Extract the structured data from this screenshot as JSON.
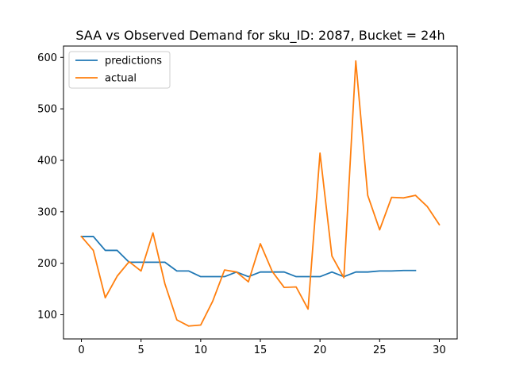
{
  "chart_data": {
    "type": "line",
    "title": "SAA vs Observed Demand for sku_ID: 2087, Bucket = 24h",
    "xlabel": "",
    "ylabel": "",
    "xlim": [
      -1.5,
      31.5
    ],
    "ylim": [
      53,
      622
    ],
    "xticks": [
      0,
      5,
      10,
      15,
      20,
      25,
      30
    ],
    "yticks": [
      100,
      200,
      300,
      400,
      500,
      600
    ],
    "grid": false,
    "legend_position": "top-left",
    "series": [
      {
        "name": "predictions",
        "color": "#1f77b4",
        "x": [
          0,
          1,
          2,
          3,
          4,
          5,
          6,
          7,
          8,
          9,
          10,
          11,
          12,
          13,
          14,
          15,
          16,
          17,
          18,
          19,
          20,
          21,
          22,
          23,
          24,
          25,
          26,
          27,
          28
        ],
        "y": [
          252,
          252,
          225,
          225,
          202,
          202,
          202,
          202,
          185,
          185,
          174,
          174,
          174,
          183,
          174,
          183,
          183,
          183,
          174,
          174,
          174,
          183,
          174,
          183,
          183,
          185,
          185,
          186,
          186
        ]
      },
      {
        "name": "actual",
        "color": "#ff7f0e",
        "x": [
          0,
          1,
          2,
          3,
          4,
          5,
          6,
          7,
          8,
          9,
          10,
          11,
          12,
          13,
          14,
          15,
          16,
          17,
          18,
          19,
          20,
          21,
          22,
          23,
          24,
          25,
          26,
          27,
          28,
          29,
          30
        ],
        "y": [
          252,
          225,
          133,
          175,
          203,
          185,
          259,
          160,
          90,
          78,
          80,
          126,
          187,
          183,
          164,
          238,
          184,
          153,
          154,
          111,
          414,
          214,
          172,
          593,
          332,
          265,
          328,
          327,
          332,
          310,
          275
        ]
      }
    ]
  }
}
